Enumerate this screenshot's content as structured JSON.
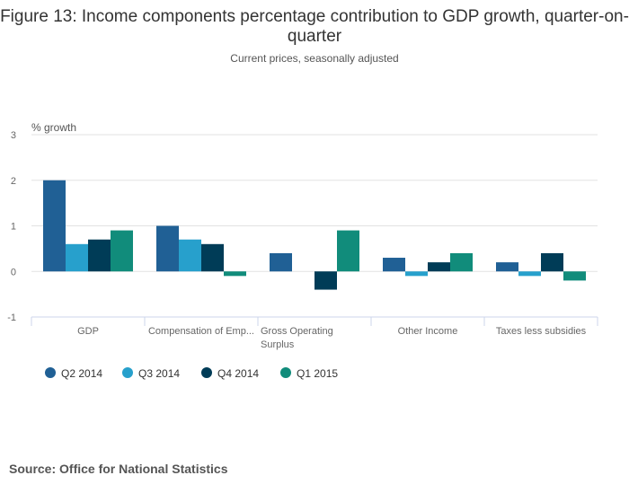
{
  "chart_data": {
    "type": "bar",
    "title": "Figure 13: Income components percentage contribution to GDP growth, quarter-on-quarter",
    "subtitle": "Current prices, seasonally adjusted",
    "ylabel": "% growth",
    "xlabel": "",
    "ylim": [
      -1,
      3
    ],
    "yticks": [
      -1,
      0,
      1,
      2,
      3
    ],
    "grid": true,
    "legend": "bottom-left",
    "categories": [
      "GDP",
      "Compensation of Emp...",
      "Gross Operating Surplus",
      "Other Income",
      "Taxes less subsidies"
    ],
    "series": [
      {
        "name": "Q2 2014",
        "color": "#206095",
        "values": [
          2.0,
          1.0,
          0.4,
          0.3,
          0.2
        ]
      },
      {
        "name": "Q3 2014",
        "color": "#27a0cc",
        "values": [
          0.6,
          0.7,
          0.0,
          -0.1,
          -0.1
        ]
      },
      {
        "name": "Q4 2014",
        "color": "#003c57",
        "values": [
          0.7,
          0.6,
          -0.4,
          0.2,
          0.4
        ]
      },
      {
        "name": "Q1 2015",
        "color": "#118c7b",
        "values": [
          0.9,
          -0.1,
          0.9,
          0.4,
          -0.2
        ]
      }
    ]
  },
  "source": "Source: Office for National Statistics"
}
